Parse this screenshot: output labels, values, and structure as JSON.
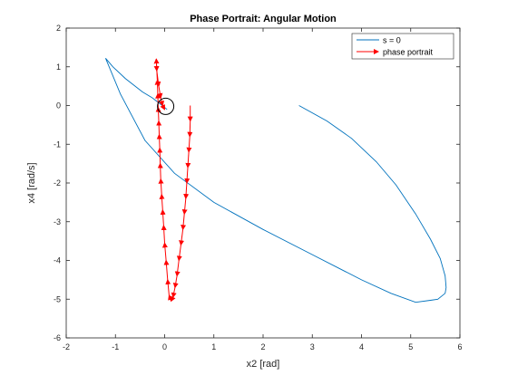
{
  "chart_data": {
    "type": "line",
    "title": "Phase Portrait: Angular Motion",
    "xlabel": "x2 [rad]",
    "ylabel": "x4 [rad/s]",
    "xlim": [
      -2,
      6
    ],
    "ylim": [
      -6,
      2
    ],
    "xticks": [
      "-2",
      "-1",
      "0",
      "1",
      "2",
      "3",
      "4",
      "5",
      "6"
    ],
    "yticks": [
      "2",
      "1",
      "0",
      "-1",
      "-2",
      "-3",
      "-4",
      "-5",
      "-6"
    ],
    "grid": false,
    "legend_position": "top-right",
    "colors": {
      "s0": "#0072BD",
      "phase": "#FF0000",
      "marker": "#000000"
    },
    "series": [
      {
        "name": "s = 0",
        "type": "line",
        "x": [
          2.73,
          3.3,
          3.8,
          4.3,
          4.7,
          5.1,
          5.4,
          5.6,
          5.7,
          5.72,
          5.7,
          5.55,
          5.4,
          5.1,
          4.6,
          4.0,
          3.0,
          2.0,
          1.0,
          0.2,
          -0.4,
          -0.9,
          -1.2,
          -1.05,
          -0.8,
          -0.45,
          -0.25,
          -0.1,
          0.0,
          0.05
        ],
        "y": [
          0.0,
          -0.4,
          -0.85,
          -1.45,
          -2.05,
          -2.8,
          -3.45,
          -3.95,
          -4.4,
          -4.7,
          -4.85,
          -5.0,
          -5.03,
          -5.08,
          -4.85,
          -4.5,
          -3.85,
          -3.2,
          -2.5,
          -1.75,
          -0.9,
          0.3,
          1.22,
          1.0,
          0.7,
          0.35,
          0.2,
          0.05,
          -0.05,
          -0.1
        ]
      },
      {
        "name": "phase portrait",
        "type": "quiver",
        "x": [
          0.52,
          0.52,
          0.51,
          0.49,
          0.47,
          0.45,
          0.43,
          0.4,
          0.37,
          0.33,
          0.29,
          0.25,
          0.21,
          0.17,
          0.13,
          0.09,
          0.06,
          0.03,
          0.0,
          -0.02,
          -0.04,
          -0.06,
          -0.08,
          -0.09,
          -0.1,
          -0.11,
          -0.12,
          -0.13,
          -0.14,
          -0.15,
          -0.17,
          -0.16,
          -0.12,
          -0.08,
          -0.04,
          0.0
        ],
        "y": [
          0.0,
          -0.4,
          -0.8,
          -1.2,
          -1.6,
          -2.0,
          -2.4,
          -2.8,
          -3.2,
          -3.6,
          -4.0,
          -4.4,
          -4.7,
          -4.95,
          -5.05,
          -4.9,
          -4.5,
          -4.0,
          -3.55,
          -3.1,
          -2.7,
          -2.3,
          -1.9,
          -1.5,
          -1.1,
          -0.75,
          -0.4,
          -0.05,
          0.3,
          0.65,
          1.2,
          0.9,
          0.5,
          0.2,
          0.0,
          -0.1
        ]
      }
    ],
    "annotations": [
      {
        "type": "circle-marker",
        "x": 0.02,
        "y": -0.02
      }
    ],
    "legend": {
      "entries": [
        "s = 0",
        "phase portrait"
      ]
    }
  }
}
